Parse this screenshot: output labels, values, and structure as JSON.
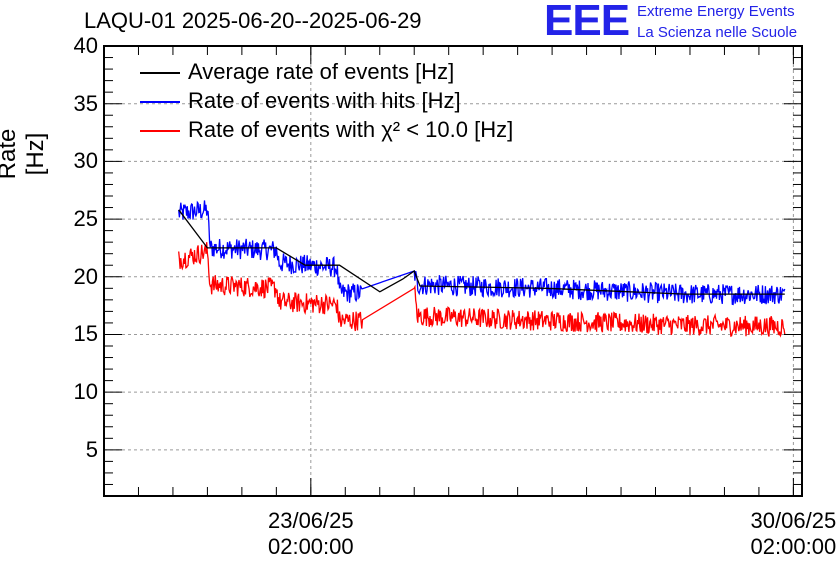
{
  "header": {
    "title": "LAQU-01 2025-06-20--2025-06-29"
  },
  "logo": {
    "mark": "EEE",
    "line1": "Extreme Energy Events",
    "line2": "La Scienza nelle Scuole"
  },
  "chart_data": {
    "type": "line",
    "title": "LAQU-01 2025-06-20--2025-06-29",
    "xlabel": "",
    "ylabel": "Rate [Hz]",
    "ylim": [
      1,
      40
    ],
    "yticks": [
      "5",
      "10",
      "15",
      "20",
      "25",
      "30",
      "35",
      "40"
    ],
    "xlim": [
      "2025-06-20 02:00",
      "2025-06-30 05:00"
    ],
    "xticks": [
      {
        "date": "23/06/25",
        "time": "02:00:00"
      },
      {
        "date": "30/06/25",
        "time": "02:00:00"
      }
    ],
    "grid": true,
    "legend_position": "top-left",
    "series": [
      {
        "name": "Average rate of events [Hz]",
        "color": "#000000",
        "points": [
          [
            "2025-06-21 04:00",
            25.8
          ],
          [
            "2025-06-21 14:00",
            22.5
          ],
          [
            "2025-06-22 14:00",
            22.5
          ],
          [
            "2025-06-23 00:00",
            21.0
          ],
          [
            "2025-06-23 12:00",
            21.0
          ],
          [
            "2025-06-24 02:00",
            18.7
          ],
          [
            "2025-06-24 10:00",
            19.8
          ],
          [
            "2025-06-24 14:00",
            20.5
          ],
          [
            "2025-06-24 16:00",
            19.2
          ],
          [
            "2025-06-26 12:00",
            19.0
          ],
          [
            "2025-06-28 12:00",
            18.5
          ],
          [
            "2025-06-29 23:00",
            18.5
          ]
        ]
      },
      {
        "name": "Rate of events with hits [Hz]",
        "color": "#0000ff",
        "noise": 0.9,
        "points": [
          [
            "2025-06-21 04:00",
            25.5
          ],
          [
            "2025-06-21 14:00",
            25.8
          ],
          [
            "2025-06-21 15:00",
            22.5
          ],
          [
            "2025-06-22 14:00",
            22.3
          ],
          [
            "2025-06-22 15:00",
            21.2
          ],
          [
            "2025-06-23 11:00",
            20.8
          ],
          [
            "2025-06-23 12:00",
            18.6
          ],
          [
            "2025-06-23 20:00",
            18.6
          ],
          [
            "2025-06-24 14:00",
            20.5
          ],
          [
            "2025-06-24 15:00",
            19.3
          ],
          [
            "2025-06-26 12:00",
            19.0
          ],
          [
            "2025-06-28 12:00",
            18.5
          ],
          [
            "2025-06-29 23:00",
            18.5
          ]
        ]
      },
      {
        "name": "Rate of events with χ² < 10.0 [Hz]",
        "color": "#ff0000",
        "noise": 0.9,
        "points": [
          [
            "2025-06-21 04:00",
            21.5
          ],
          [
            "2025-06-21 14:00",
            22.2
          ],
          [
            "2025-06-21 15:00",
            19.3
          ],
          [
            "2025-06-22 14:00",
            19.0
          ],
          [
            "2025-06-22 15:00",
            17.8
          ],
          [
            "2025-06-23 11:00",
            17.6
          ],
          [
            "2025-06-23 12:00",
            16.2
          ],
          [
            "2025-06-23 20:00",
            16.2
          ],
          [
            "2025-06-24 14:00",
            19.0
          ],
          [
            "2025-06-24 15:00",
            16.6
          ],
          [
            "2025-06-26 12:00",
            16.2
          ],
          [
            "2025-06-28 12:00",
            15.8
          ],
          [
            "2025-06-29 23:00",
            15.7
          ]
        ]
      }
    ]
  }
}
